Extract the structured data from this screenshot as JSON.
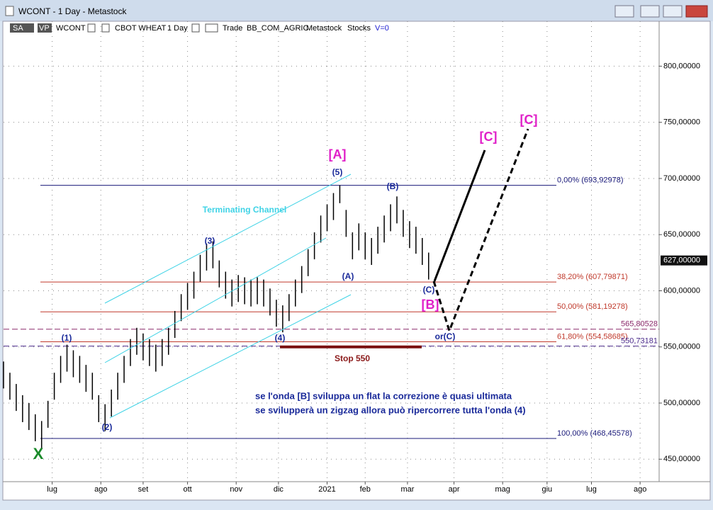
{
  "window": {
    "title": "WCONT - 1 Day - Metastock"
  },
  "toolbar": {
    "items": [
      "SA",
      "VP",
      "WCONT",
      "CBOT WHEAT",
      "1 Day",
      "Trade",
      "BB_COM_AGRIC",
      "Metastock",
      "Stocks",
      "V=0"
    ]
  },
  "chart_data": {
    "type": "ohlc",
    "x": [
      0,
      3,
      6,
      9,
      12,
      15,
      18,
      21,
      24,
      27,
      30,
      33,
      36,
      39,
      42,
      45,
      48,
      51,
      54,
      57,
      60,
      63,
      66,
      69,
      72,
      75,
      78,
      81,
      84,
      87,
      90,
      93,
      96,
      99,
      102,
      105,
      108,
      111,
      114,
      117,
      120,
      123,
      126,
      129,
      132,
      135,
      138,
      141,
      144,
      147,
      150,
      153,
      156,
      159,
      162,
      165,
      168,
      171,
      174,
      177,
      180,
      183,
      186,
      189,
      192,
      195,
      198,
      201
    ],
    "high": [
      537,
      527,
      517,
      507,
      500,
      490,
      484,
      502,
      527,
      542,
      552,
      547,
      542,
      534,
      527,
      507,
      499,
      512,
      527,
      542,
      557,
      567,
      562,
      557,
      552,
      557,
      567,
      582,
      597,
      607,
      617,
      632,
      642,
      644,
      627,
      617,
      610,
      614,
      612,
      610,
      612,
      610,
      602,
      592,
      587,
      597,
      610,
      622,
      637,
      652,
      667,
      677,
      687,
      694,
      672,
      652,
      660,
      652,
      647,
      657,
      667,
      677,
      684,
      672,
      662,
      657,
      647,
      634
    ],
    "low": [
      513,
      503,
      493,
      483,
      476,
      466,
      460,
      478,
      503,
      518,
      528,
      523,
      518,
      510,
      503,
      483,
      475,
      488,
      503,
      518,
      533,
      543,
      538,
      533,
      528,
      533,
      543,
      558,
      573,
      583,
      593,
      608,
      618,
      620,
      603,
      593,
      586,
      590,
      588,
      586,
      588,
      586,
      578,
      568,
      563,
      573,
      586,
      598,
      613,
      628,
      643,
      653,
      663,
      678,
      648,
      628,
      636,
      628,
      623,
      633,
      643,
      653,
      660,
      648,
      638,
      633,
      623,
      610
    ],
    "color": "#000000",
    "xlim": [
      0,
      310
    ],
    "ylim": [
      430,
      840
    ],
    "xticks": [
      {
        "value": 23,
        "label": "lug"
      },
      {
        "value": 46,
        "label": "ago"
      },
      {
        "value": 66,
        "label": "set"
      },
      {
        "value": 87,
        "label": "ott"
      },
      {
        "value": 110,
        "label": "nov"
      },
      {
        "value": 130,
        "label": "dic"
      },
      {
        "value": 153,
        "label": "2021"
      },
      {
        "value": 171,
        "label": "feb"
      },
      {
        "value": 191,
        "label": "mar"
      },
      {
        "value": 213,
        "label": "apr"
      },
      {
        "value": 236,
        "label": "mag"
      },
      {
        "value": 257,
        "label": "giu"
      },
      {
        "value": 278,
        "label": "lug"
      },
      {
        "value": 301,
        "label": "ago"
      }
    ],
    "yticks": [
      {
        "value": 450,
        "label": "450,00000"
      },
      {
        "value": 500,
        "label": "500,00000"
      },
      {
        "value": 550,
        "label": "550,00000"
      },
      {
        "value": 600,
        "label": "600,00000"
      },
      {
        "value": 650,
        "label": "650,00000"
      },
      {
        "value": 700,
        "label": "700,00000"
      },
      {
        "value": 750,
        "label": "750,00000"
      },
      {
        "value": 800,
        "label": "800,00000"
      }
    ],
    "last_price": {
      "value": 627,
      "label": "627,00000"
    },
    "fib_levels": [
      {
        "value": 693.92978,
        "label": "0,00% (693,92978)",
        "color": "#1a1a7a"
      },
      {
        "value": 607.79871,
        "label": "38,20% (607,79871)",
        "color": "#c0392b"
      },
      {
        "value": 581.19278,
        "label": "50,00% (581,19278)",
        "color": "#c0392b"
      },
      {
        "value": 554.58685,
        "label": "61,80% (554,58685)",
        "color": "#c0392b"
      },
      {
        "value": 468.45578,
        "label": "100,00% (468,45578)",
        "color": "#1a1a7a"
      }
    ],
    "dashed_levels": [
      {
        "value": 565.80528,
        "label": "565,80528",
        "color": "#8b2a6b"
      },
      {
        "value": 550.73181,
        "label": "550,73181",
        "color": "#4a2a8b"
      }
    ],
    "stop": {
      "value": 550,
      "label": "Stop 550"
    },
    "annotations": [
      "[A]",
      "(5)",
      "(B)",
      "(3)",
      "Terminating Channel",
      "(A)",
      "(C)",
      "[B]",
      "or(C)",
      "[C]",
      "[C]",
      "(1)",
      "(2)",
      "(4)",
      "X",
      "se l'onda [B] sviluppa un flat la correzione è quasi ultimata",
      "se svilupperà un zigzag allora può ripercorrere tutta l'onda (4)"
    ]
  }
}
